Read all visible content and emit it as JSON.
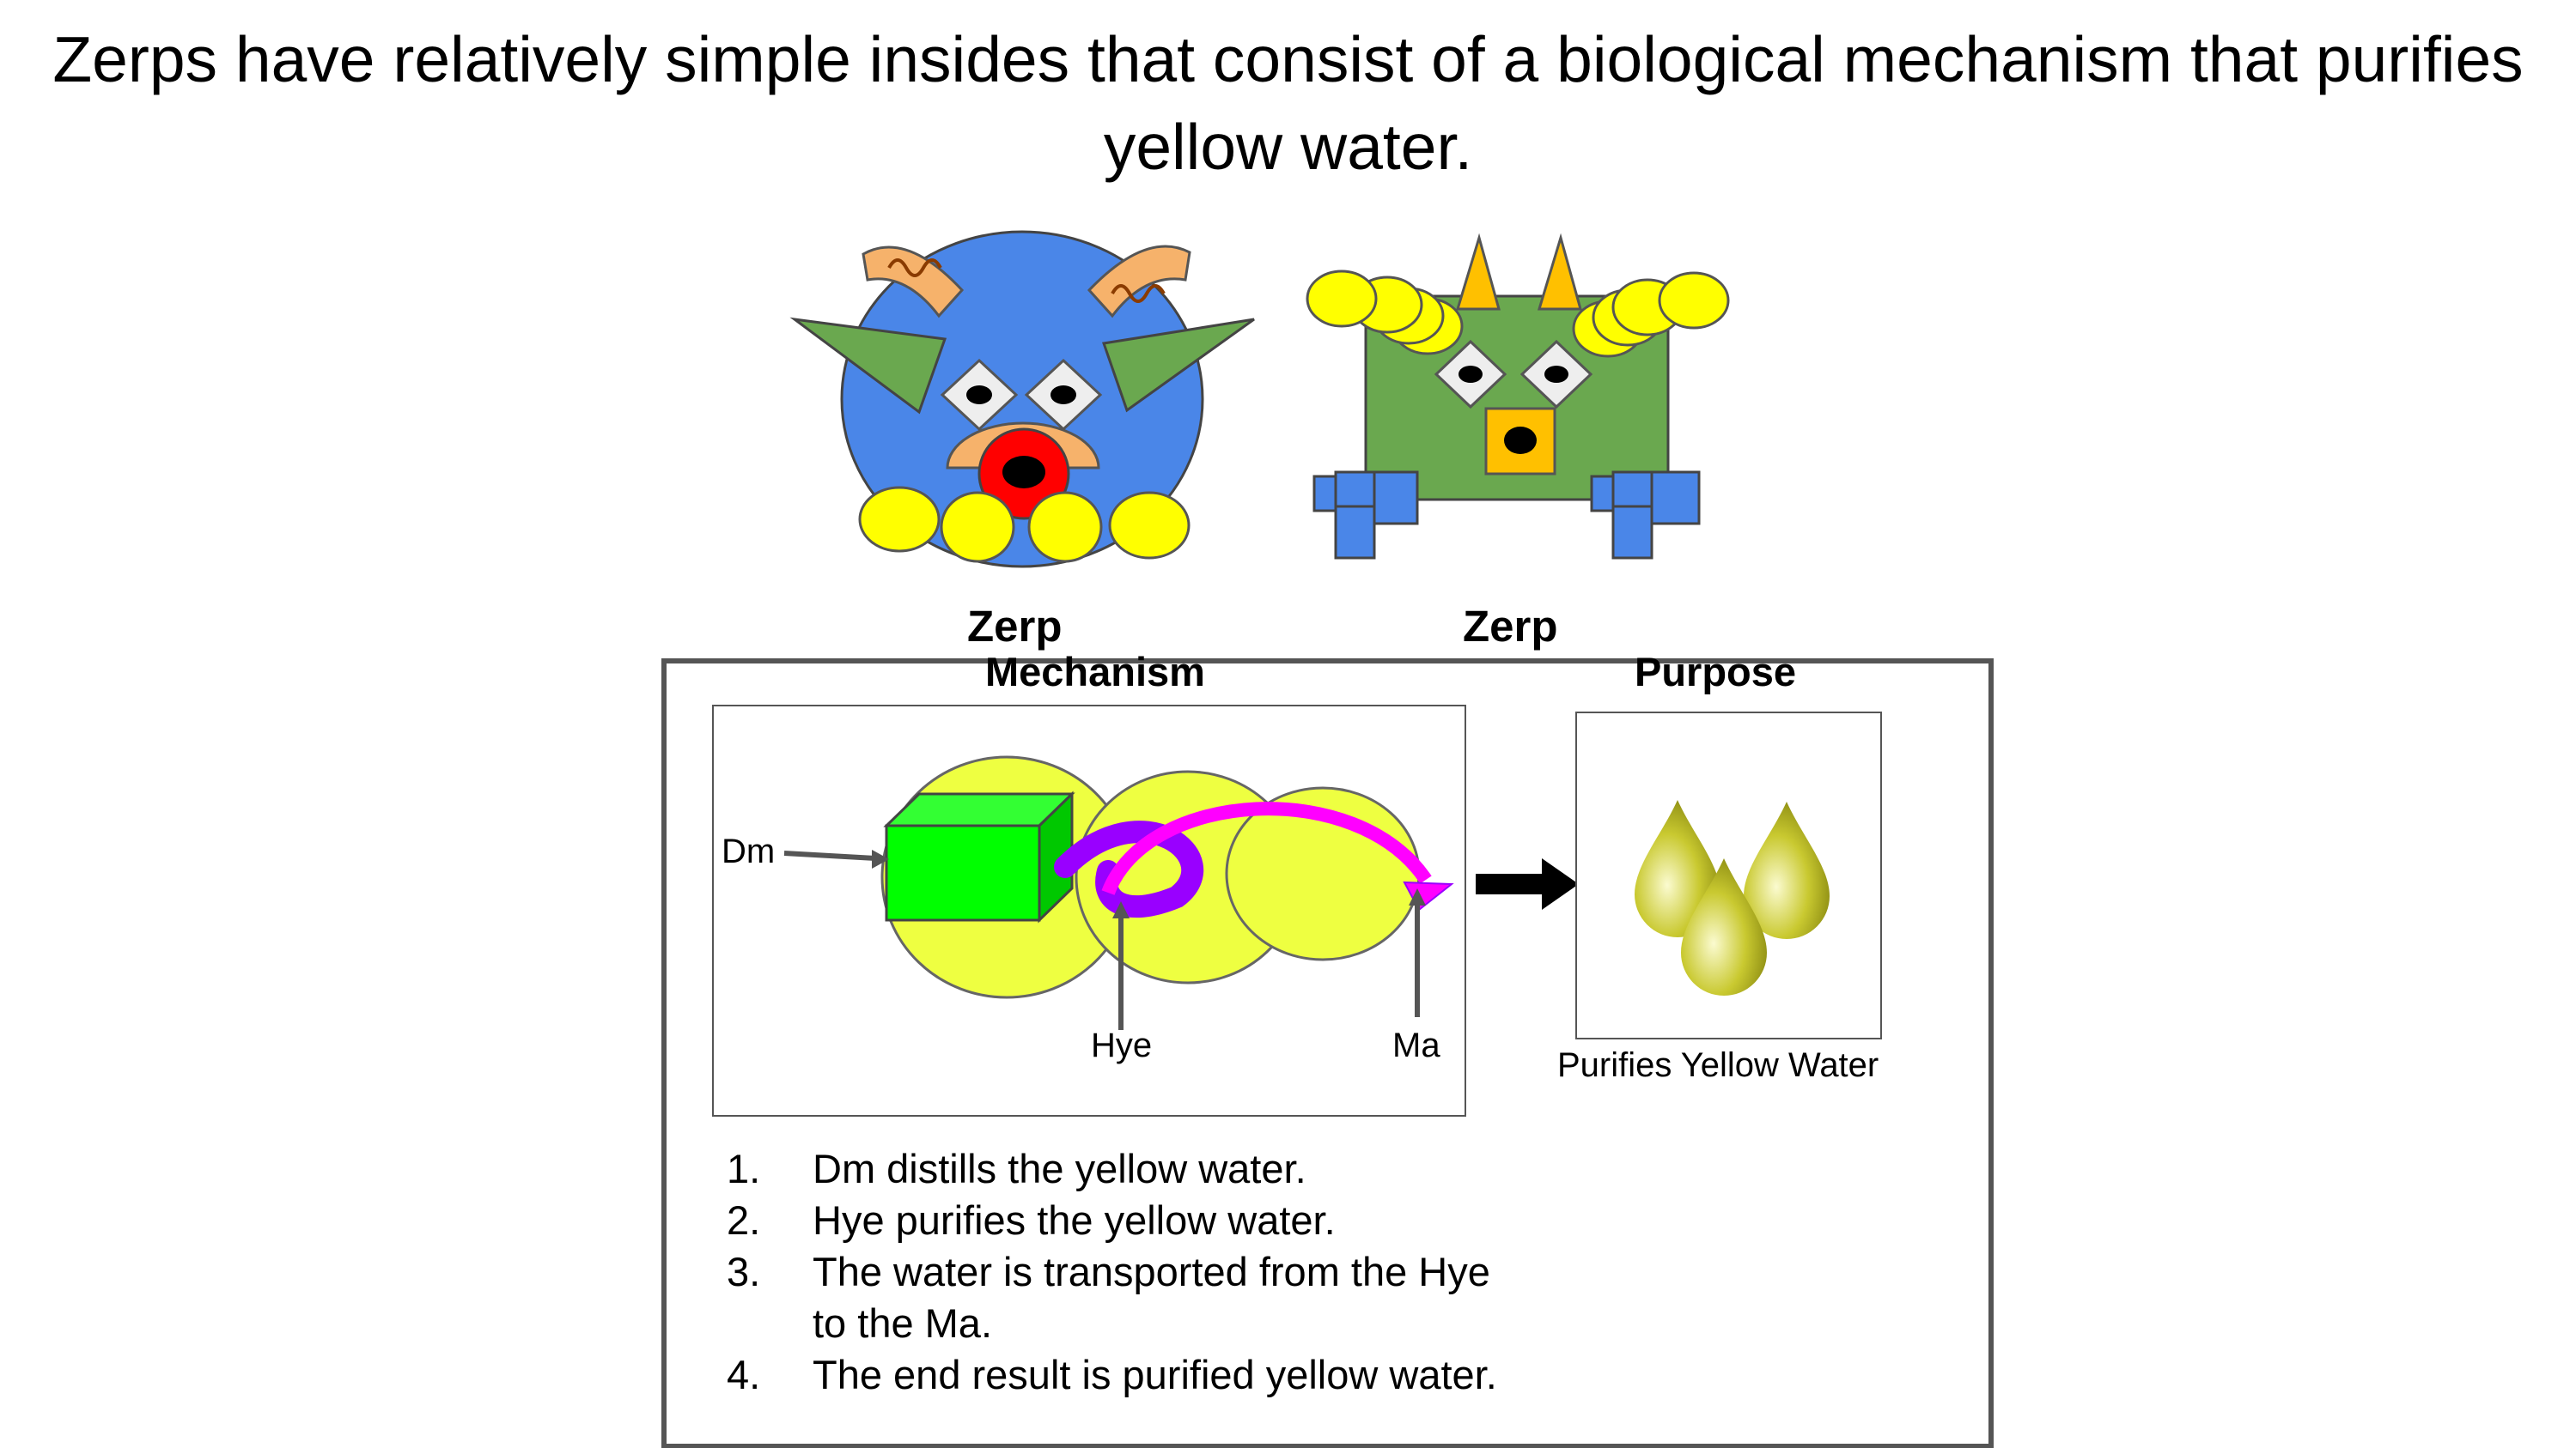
{
  "heading": "Zerps have relatively simple insides that consist of a biological mechanism that purifies yellow water.",
  "creatures": [
    {
      "caption": "Zerp"
    },
    {
      "caption": "Zerp"
    }
  ],
  "mechanism": {
    "heading": "Mechanism",
    "labels": {
      "dm": "Dm",
      "hye": "Hye",
      "ma": "Ma"
    }
  },
  "purpose": {
    "heading": "Purpose",
    "caption": "Purifies Yellow Water"
  },
  "steps": [
    {
      "num": "1.",
      "text": "Dm distills the yellow water."
    },
    {
      "num": "2.",
      "text": "Hye purifies the yellow water."
    },
    {
      "num": "3.",
      "text": "The water is transported from the Hye to the Ma."
    },
    {
      "num": "4.",
      "text": "The end result is purified yellow water."
    }
  ],
  "colors": {
    "blue_body": "#4a86e8",
    "green_body": "#6aa84f",
    "yellow": "#ffff00",
    "orange": "#f6b26b",
    "mechanism_circle": "#eeff41",
    "box_green": "#00ff00",
    "arrow_magenta": "#ff00ff",
    "arrow_purple": "#9900ff"
  }
}
